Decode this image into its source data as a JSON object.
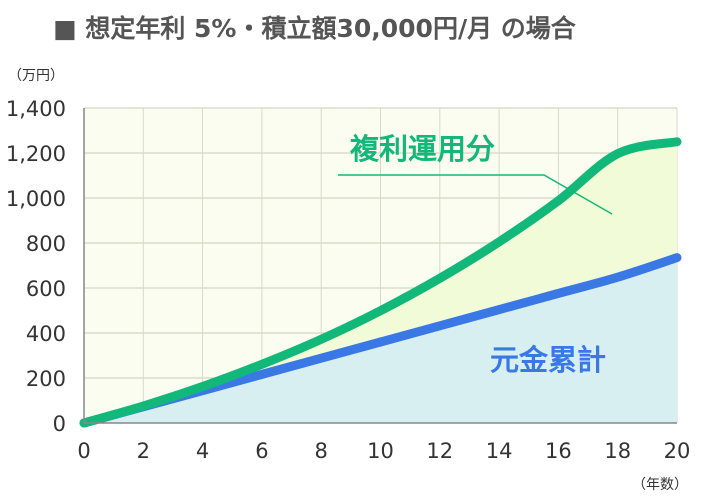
{
  "chart_data": {
    "type": "line",
    "title": "■ 想定年利 5%・積立額30,000円/月 の場合",
    "y_unit_label": "（万円）",
    "x_unit_label": "（年数）",
    "xlim": [
      0,
      20
    ],
    "ylim": [
      0,
      1400
    ],
    "x_ticks": [
      "0",
      "2",
      "4",
      "6",
      "8",
      "10",
      "12",
      "14",
      "16",
      "18",
      "20"
    ],
    "y_ticks": [
      "0",
      "200",
      "400",
      "600",
      "800",
      "1,000",
      "1,200",
      "1,400"
    ],
    "grid": true,
    "x": [
      0,
      2,
      4,
      6,
      8,
      10,
      12,
      14,
      16,
      18,
      20
    ],
    "series": [
      {
        "name": "複利運用分",
        "color": "#12b87a",
        "values": [
          0,
          75.5,
          162,
          261,
          372,
          499,
          643,
          805,
          988,
          1197,
          1250
        ]
      },
      {
        "name": "元金累計",
        "color": "#3a78e6",
        "values": [
          0,
          72,
          144,
          216,
          288,
          360,
          432,
          504,
          576,
          648,
          735
        ]
      }
    ],
    "area_colors": {
      "principal": "#d8eff2",
      "interest": "#f2fbd8"
    },
    "plot_background": "#fbfdf0"
  }
}
